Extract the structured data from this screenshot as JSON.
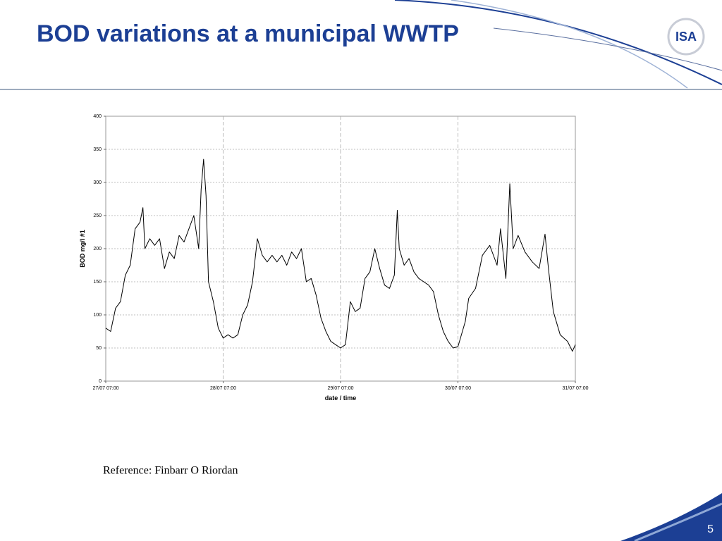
{
  "slide": {
    "title": "BOD variations at a municipal WWTP",
    "logo": "ISA",
    "reference": "Reference: Finbarr O Riordan",
    "page_number": "5"
  },
  "chart_data": {
    "type": "line",
    "xlabel": "date / time",
    "ylabel": "BOD mg/l #1",
    "x": [
      0,
      1,
      2,
      3,
      4,
      5,
      6,
      7,
      7.6,
      8,
      9,
      10,
      11,
      12,
      13,
      14,
      15,
      16,
      17,
      18,
      19,
      19.5,
      20,
      20.5,
      21,
      22,
      23,
      24,
      25,
      26,
      27,
      28,
      29,
      30,
      31,
      32,
      33,
      34,
      35,
      36,
      37,
      38,
      39,
      40,
      41,
      42,
      43,
      44,
      45,
      46,
      47,
      48,
      49,
      50,
      51,
      52,
      53,
      54,
      55,
      56,
      57,
      58,
      59,
      59.6,
      60,
      61,
      62,
      63,
      64,
      65,
      66,
      67,
      68,
      69,
      70,
      71,
      72,
      73.5,
      74.2,
      75.6,
      77,
      78.5,
      80,
      80.7,
      81.8,
      82.6,
      83.3,
      84.3,
      85.7,
      87.2,
      88.6,
      89.8,
      90.5,
      91.5,
      92.9,
      94.4,
      95.4,
      96
    ],
    "series": [
      {
        "name": "BOD mg/l #1",
        "color": "#000000",
        "values": [
          80,
          75,
          110,
          120,
          160,
          175,
          230,
          240,
          262,
          200,
          215,
          205,
          215,
          170,
          195,
          185,
          220,
          210,
          230,
          250,
          200,
          290,
          335,
          280,
          150,
          120,
          80,
          65,
          70,
          65,
          70,
          100,
          115,
          150,
          215,
          190,
          180,
          190,
          180,
          190,
          175,
          195,
          185,
          200,
          150,
          155,
          130,
          95,
          75,
          60,
          55,
          50,
          55,
          120,
          105,
          110,
          155,
          165,
          200,
          170,
          145,
          140,
          160,
          258,
          200,
          175,
          185,
          165,
          155,
          150,
          145,
          135,
          100,
          75,
          60,
          50,
          52,
          90,
          125,
          140,
          190,
          205,
          175,
          230,
          155,
          298,
          200,
          220,
          195,
          180,
          170,
          222,
          170,
          105,
          70,
          60,
          45,
          55
        ]
      }
    ],
    "xlim": [
      0,
      96
    ],
    "xticks": [
      {
        "value": 0,
        "label": "27/07 07:00"
      },
      {
        "value": 24,
        "label": "28/07 07:00"
      },
      {
        "value": 48,
        "label": "29/07 07:00"
      },
      {
        "value": 72,
        "label": "30/07 07:00"
      },
      {
        "value": 96,
        "label": "31/07 07:00"
      }
    ],
    "ylim": [
      0,
      400
    ],
    "yticks": [
      0,
      50,
      100,
      150,
      200,
      250,
      300,
      350,
      400
    ],
    "grid": true
  }
}
